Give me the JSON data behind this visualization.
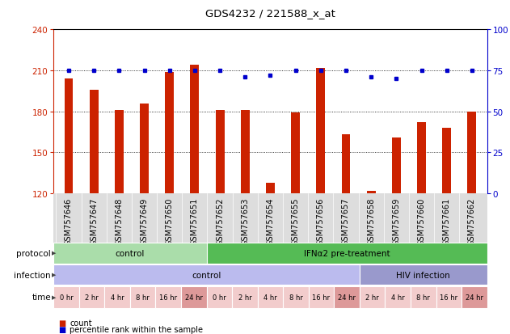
{
  "title": "GDS4232 / 221588_x_at",
  "samples": [
    "GSM757646",
    "GSM757647",
    "GSM757648",
    "GSM757649",
    "GSM757650",
    "GSM757651",
    "GSM757652",
    "GSM757653",
    "GSM757654",
    "GSM757655",
    "GSM757656",
    "GSM757657",
    "GSM757658",
    "GSM757659",
    "GSM757660",
    "GSM757661",
    "GSM757662"
  ],
  "bar_values": [
    204,
    196,
    181,
    186,
    209,
    214,
    181,
    181,
    128,
    179,
    212,
    163,
    122,
    161,
    172,
    168,
    180
  ],
  "dot_values": [
    75,
    75,
    75,
    75,
    75,
    75,
    75,
    71,
    72,
    75,
    75,
    75,
    71,
    70,
    75,
    75,
    75
  ],
  "ylim_left": [
    120,
    240
  ],
  "ylim_right": [
    0,
    100
  ],
  "yticks_left": [
    120,
    150,
    180,
    210,
    240
  ],
  "yticks_right": [
    0,
    25,
    50,
    75,
    100
  ],
  "bar_color": "#cc2200",
  "dot_color": "#0000cc",
  "plot_bg": "#ffffff",
  "protocol_groups": [
    {
      "label": "control",
      "start": 0,
      "end": 6,
      "color": "#aaddaa"
    },
    {
      "label": "IFNα2 pre-treatment",
      "start": 6,
      "end": 17,
      "color": "#55bb55"
    }
  ],
  "infection_groups": [
    {
      "label": "control",
      "start": 0,
      "end": 12,
      "color": "#bbbbee"
    },
    {
      "label": "HIV infection",
      "start": 12,
      "end": 17,
      "color": "#9999cc"
    }
  ],
  "time_labels": [
    "0 hr",
    "2 hr",
    "4 hr",
    "8 hr",
    "16 hr",
    "24 hr",
    "0 hr",
    "2 hr",
    "4 hr",
    "8 hr",
    "16 hr",
    "24 hr",
    "2 hr",
    "4 hr",
    "8 hr",
    "16 hr",
    "24 hr"
  ],
  "time_colors": [
    "#f2cccc",
    "#f2cccc",
    "#f2cccc",
    "#f2cccc",
    "#f2cccc",
    "#dd9999",
    "#f2cccc",
    "#f2cccc",
    "#f2cccc",
    "#f2cccc",
    "#f2cccc",
    "#dd9999",
    "#f2cccc",
    "#f2cccc",
    "#f2cccc",
    "#f2cccc",
    "#dd9999"
  ],
  "label_fontsize": 7,
  "tick_fontsize": 7.5,
  "row_label_fontsize": 7.5
}
